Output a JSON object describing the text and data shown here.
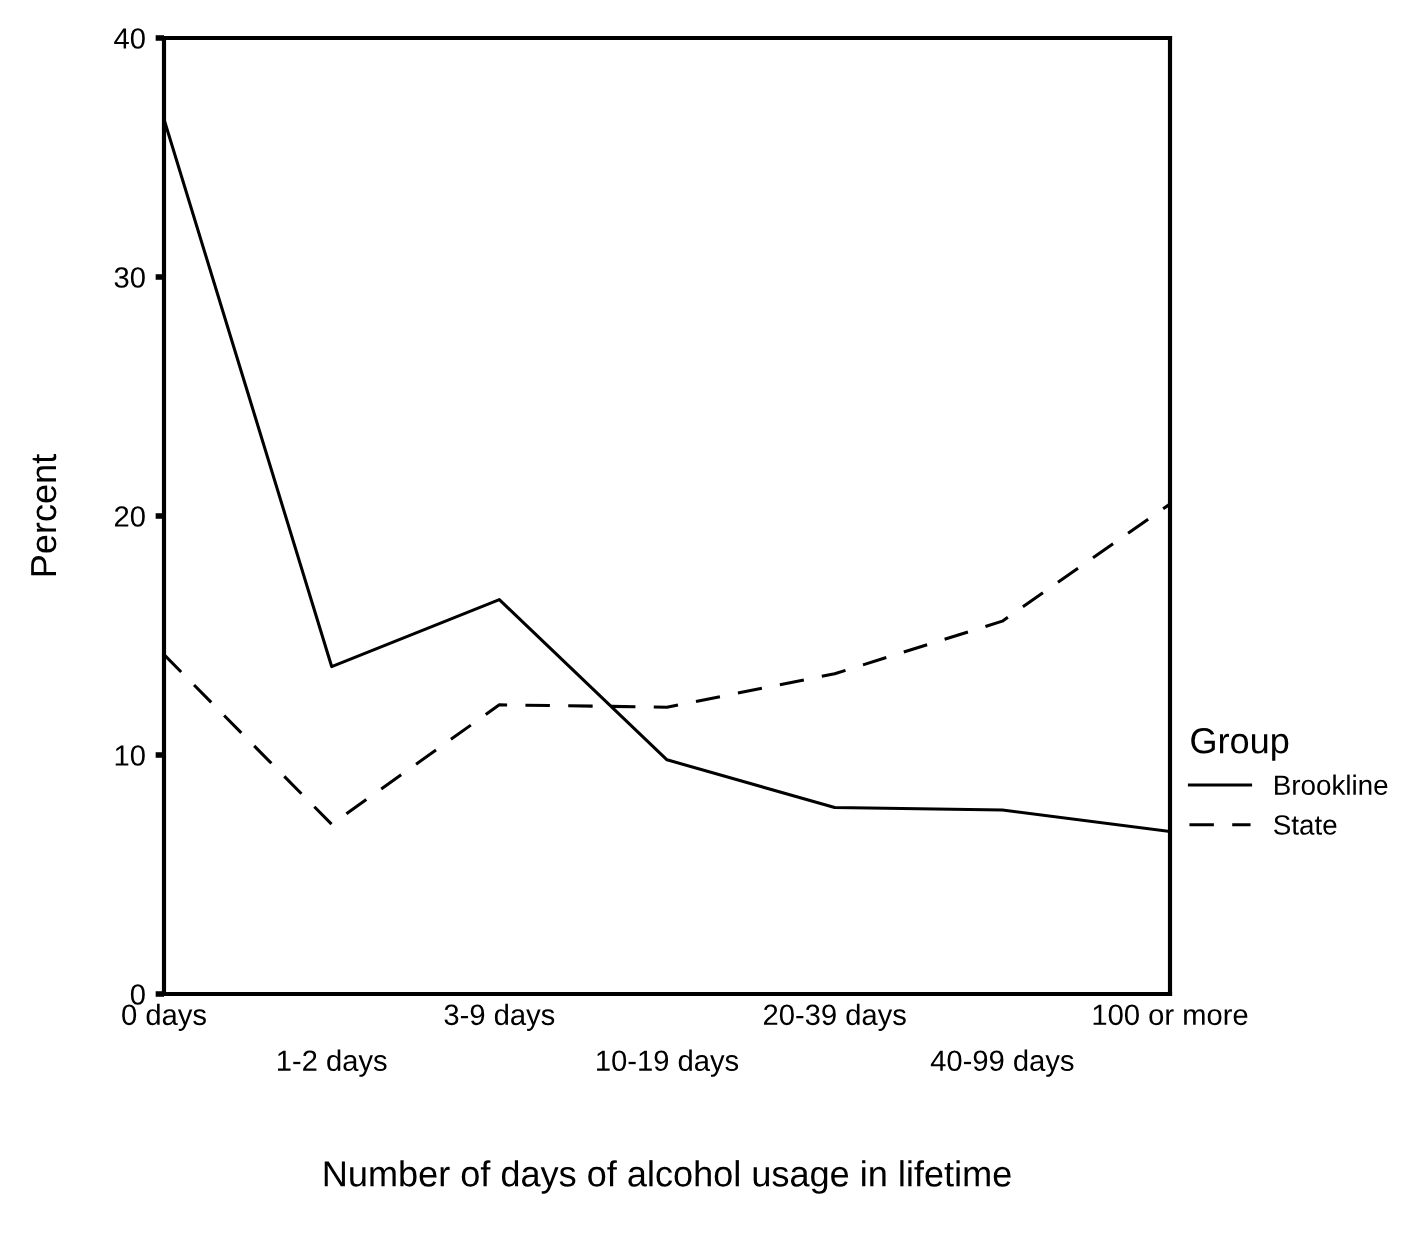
{
  "chart_data": {
    "type": "line",
    "xlabel": "Number of days of alcohol usage in lifetime",
    "ylabel": "Percent",
    "categories": [
      "0 days",
      "1-2 days",
      "3-9 days",
      "10-19 days",
      "20-39 days",
      "40-99 days",
      "100 or more"
    ],
    "series": [
      {
        "name": "Brookline",
        "color": "#000000",
        "line_style": "solid",
        "values": [
          36.6,
          13.7,
          16.5,
          9.8,
          7.8,
          7.7,
          6.8
        ]
      },
      {
        "name": "State",
        "color": "#000000",
        "line_style": "dashed",
        "values": [
          14.2,
          7.1,
          12.1,
          12.0,
          13.4,
          15.6,
          20.5
        ]
      }
    ],
    "ylim": [
      0,
      40
    ],
    "yticks": [
      0,
      10,
      20,
      30,
      40
    ],
    "legend": "right",
    "legend_title": "Group",
    "grid": false,
    "marker": "none"
  }
}
